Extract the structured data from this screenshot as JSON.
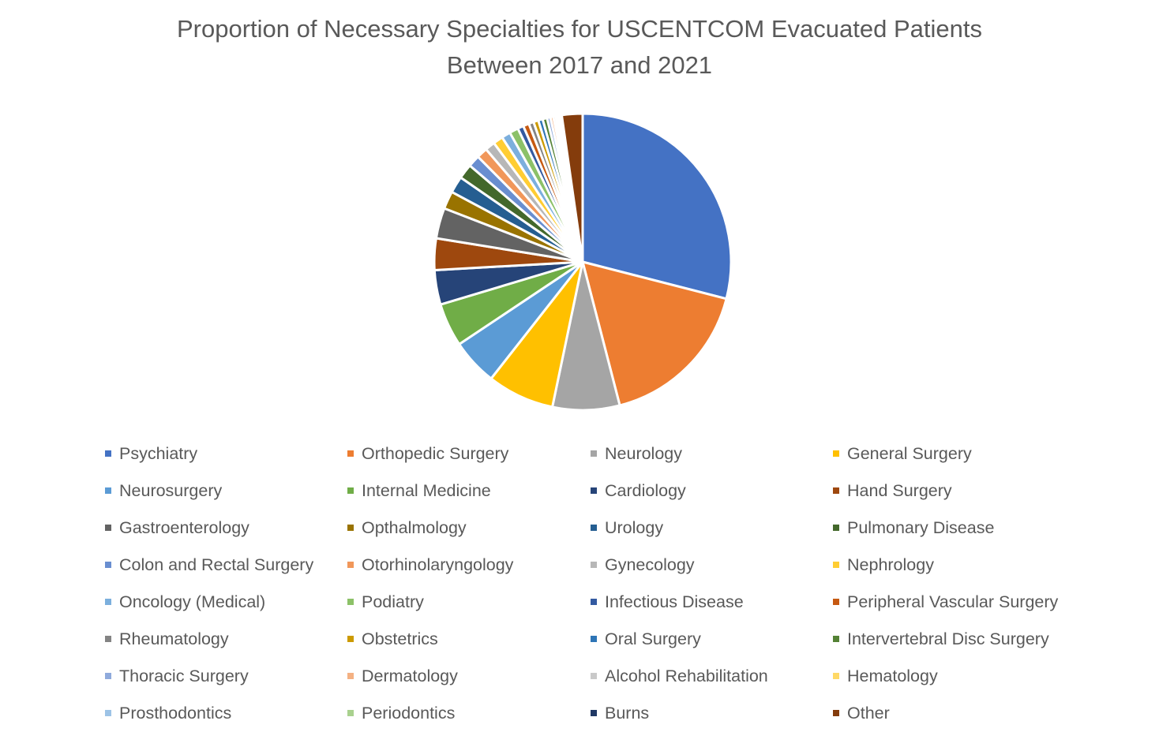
{
  "chart_data": {
    "type": "pie",
    "title_lines": [
      "Proportion of Necessary Specialties for USCENTCOM Evacuated Patients",
      "Between 2017 and 2021"
    ],
    "legend_position": "bottom",
    "start_angle_deg": 0,
    "direction": "clockwise",
    "slices": [
      {
        "label": "Psychiatry",
        "value": 27.0,
        "color": "#4472C4"
      },
      {
        "label": "Orthopedic Surgery",
        "value": 15.8,
        "color": "#ED7D31"
      },
      {
        "label": "Neurology",
        "value": 6.8,
        "color": "#A5A5A5"
      },
      {
        "label": "General Surgery",
        "value": 6.8,
        "color": "#FFC000"
      },
      {
        "label": "Neurosurgery",
        "value": 4.7,
        "color": "#5B9BD5"
      },
      {
        "label": "Internal Medicine",
        "value": 4.4,
        "color": "#70AD47"
      },
      {
        "label": "Cardiology",
        "value": 3.5,
        "color": "#264478"
      },
      {
        "label": "Hand Surgery",
        "value": 3.2,
        "color": "#9E480E"
      },
      {
        "label": "Gastroenterology",
        "value": 3.1,
        "color": "#636363"
      },
      {
        "label": "Opthalmology",
        "value": 1.8,
        "color": "#997300"
      },
      {
        "label": "Urology",
        "value": 1.7,
        "color": "#255E91"
      },
      {
        "label": "Pulmonary Disease",
        "value": 1.5,
        "color": "#43682B"
      },
      {
        "label": "Colon and Rectal Surgery",
        "value": 1.2,
        "color": "#698ED0"
      },
      {
        "label": "Otorhinolaryngology",
        "value": 1.1,
        "color": "#F1975A"
      },
      {
        "label": "Gynecology",
        "value": 1.0,
        "color": "#B7B7B7"
      },
      {
        "label": "Nephrology",
        "value": 1.0,
        "color": "#FFCD33"
      },
      {
        "label": "Oncology (Medical)",
        "value": 0.9,
        "color": "#7CAFDD"
      },
      {
        "label": "Podiatry",
        "value": 0.9,
        "color": "#8CC168"
      },
      {
        "label": "Infectious Disease",
        "value": 0.6,
        "color": "#335AA1"
      },
      {
        "label": "Peripheral Vascular Surgery",
        "value": 0.6,
        "color": "#C65911"
      },
      {
        "label": "Rheumatology",
        "value": 0.5,
        "color": "#848484"
      },
      {
        "label": "Obstetrics",
        "value": 0.5,
        "color": "#CC9A00"
      },
      {
        "label": "Oral Surgery",
        "value": 0.45,
        "color": "#2E75B6"
      },
      {
        "label": "Intervertebral Disc Surgery",
        "value": 0.45,
        "color": "#548235"
      },
      {
        "label": "Thoracic Surgery",
        "value": 0.35,
        "color": "#8FAADC"
      },
      {
        "label": "Dermatology",
        "value": 0.3,
        "color": "#F4B183"
      },
      {
        "label": "Alcohol Rehabilitation",
        "value": 0.25,
        "color": "#C9C9C9"
      },
      {
        "label": "Hematology",
        "value": 0.2,
        "color": "#FFD966"
      },
      {
        "label": "Prosthodontics",
        "value": 0.15,
        "color": "#9DC3E6"
      },
      {
        "label": "Periodontics",
        "value": 0.15,
        "color": "#A9D18E"
      },
      {
        "label": "Burns",
        "value": 0.1,
        "color": "#203864"
      },
      {
        "label": "Other",
        "value": 2.1,
        "color": "#843C0C"
      }
    ]
  }
}
